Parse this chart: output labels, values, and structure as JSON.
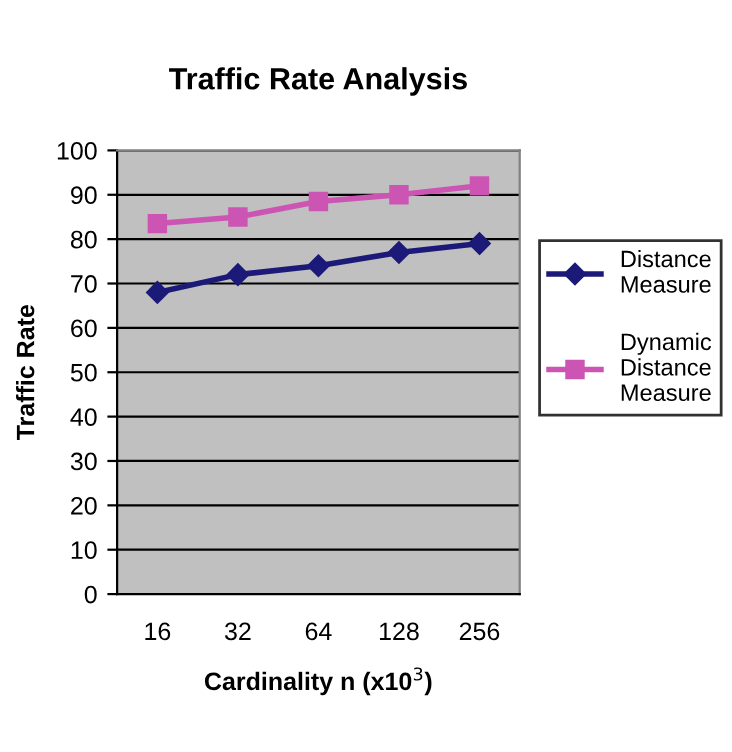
{
  "chart_data": {
    "type": "line",
    "title": "Traffic Rate Analysis",
    "xlabel": "Cardinality n (x10$^{3}$)",
    "ylabel": "Traffic Rate",
    "categories": [
      "16",
      "32",
      "64",
      "128",
      "256"
    ],
    "series": [
      {
        "name": "Distance Measure",
        "color": "#1c1a78",
        "marker": "diamond",
        "values": [
          68,
          72,
          74,
          77,
          79
        ]
      },
      {
        "name": "Dynamic Distance Measure",
        "color": "#cc55b4",
        "marker": "square",
        "values": [
          83.5,
          85,
          88.5,
          90,
          92
        ]
      }
    ],
    "ylim": [
      0,
      100
    ],
    "yticks": [
      0,
      10,
      20,
      30,
      40,
      50,
      60,
      70,
      80,
      90,
      100
    ],
    "grid": "y",
    "legend": "right",
    "line_style": "solid"
  }
}
